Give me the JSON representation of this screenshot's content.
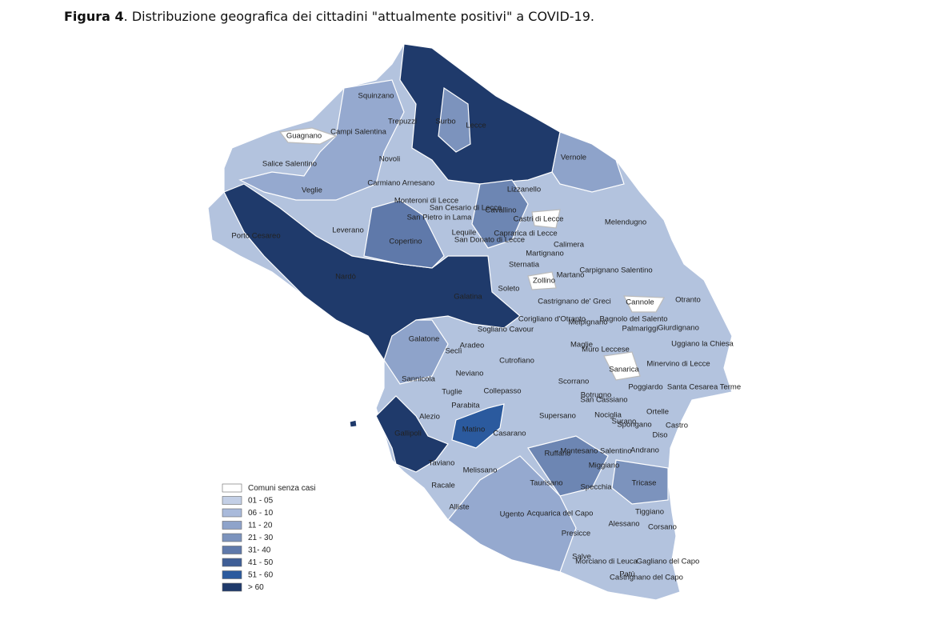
{
  "title": {
    "bold": "Figura 4",
    "text": ". Distribuzione  geografica dei cittadini \"attualmente positivi\" a COVID-19."
  },
  "legend": {
    "items": [
      "Comuni senza casi",
      "01 - 05",
      "06 - 10",
      "11 - 20",
      "21 - 30",
      "31- 40",
      "41 - 50",
      "51 - 60",
      "> 60"
    ]
  },
  "municipalities": [
    "Squinzano",
    "Trepuzzi",
    "Surbo",
    "Lecce",
    "Guagnano",
    "Campi Salentina",
    "Salice Salentino",
    "Novoli",
    "Vernole",
    "Veglie",
    "Carmiano",
    "Arnesano",
    "Lizzanello",
    "Monteroni di Lecce",
    "San Cesario di Lecce",
    "Cavallino",
    "San Pietro in Lama",
    "Castri di Lecce",
    "Melendugno",
    "Leverano",
    "Porto Cesareo",
    "Lequile",
    "Caprarica di Lecce",
    "San Donato di Lecce",
    "Copertino",
    "Calimera",
    "Martignano",
    "Sternatia",
    "Carpignano Salentino",
    "Martano",
    "Nardò",
    "Zollino",
    "Soleto",
    "Galatina",
    "Otranto",
    "Castrignano de' Greci",
    "Cannole",
    "Corigliano d'Otranto",
    "Melpignano",
    "Bagnolo del Salento",
    "Palmariggi",
    "Giurdignano",
    "Sogliano Cavour",
    "Galatone",
    "Seclì",
    "Aradeo",
    "Maglie",
    "Muro Leccese",
    "Uggiano la Chiesa",
    "Cutrofiano",
    "Minervino di Lecce",
    "Sanarica",
    "Sannicola",
    "Neviano",
    "Scorrano",
    "Poggiardo",
    "Santa Cesarea Terme",
    "Tuglie",
    "Collepasso",
    "Botrugno",
    "San Cassiano",
    "Parabita",
    "Alezio",
    "Supersano",
    "Nociglia",
    "Ortelle",
    "Surano",
    "Spongano",
    "Castro",
    "Matino",
    "Casarano",
    "Diso",
    "Gallipoli",
    "Andrano",
    "Ruffano",
    "Montesano Salentino",
    "Taviano",
    "Miggiano",
    "Melissano",
    "Racale",
    "Taurisano",
    "Specchia",
    "Tricase",
    "Alliste",
    "Tiggiano",
    "Ugento",
    "Acquarica del Capo",
    "Alessano",
    "Corsano",
    "Presicce",
    "Salve",
    "Morciano di Leuca",
    "Gagliano del Capo",
    "Patù",
    "Castrignano del Capo"
  ]
}
